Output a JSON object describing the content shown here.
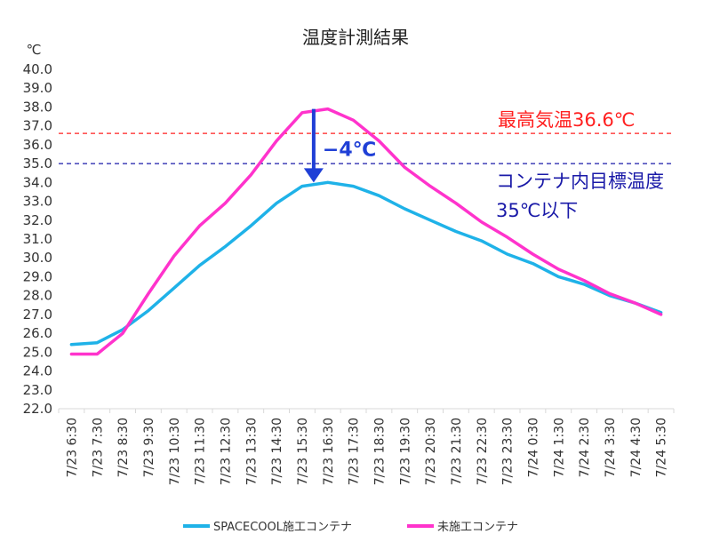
{
  "chart_data": {
    "type": "line",
    "title": "温度計測結果",
    "ylabel": "℃",
    "xlabel": "",
    "ylim": [
      22.0,
      40.0
    ],
    "y_ticks": [
      "22.0",
      "23.0",
      "24.0",
      "25.0",
      "26.0",
      "27.0",
      "28.0",
      "29.0",
      "30.0",
      "31.0",
      "32.0",
      "33.0",
      "34.0",
      "35.0",
      "36.0",
      "37.0",
      "38.0",
      "39.0",
      "40.0"
    ],
    "categories": [
      "7/23 6:30",
      "7/23 7:30",
      "7/23 8:30",
      "7/23 9:30",
      "7/23 10:30",
      "7/23 11:30",
      "7/23 12:30",
      "7/23 13:30",
      "7/23 14:30",
      "7/23 15:30",
      "7/23 16:30",
      "7/23 17:30",
      "7/23 18:30",
      "7/23 19:30",
      "7/23 20:30",
      "7/23 21:30",
      "7/23 22:30",
      "7/23 23:30",
      "7/24 0:30",
      "7/24 1:30",
      "7/24 2:30",
      "7/24 3:30",
      "7/24 4:30",
      "7/24 5:30"
    ],
    "series": [
      {
        "name": "SPACECOOL施工コンテナ",
        "color": "#1fb2e8",
        "values": [
          25.4,
          25.5,
          26.2,
          27.2,
          28.4,
          29.6,
          30.6,
          31.7,
          32.9,
          33.8,
          34.0,
          33.8,
          33.3,
          32.6,
          32.0,
          31.4,
          30.9,
          30.2,
          29.7,
          29.0,
          28.6,
          28.0,
          27.6,
          27.1
        ]
      },
      {
        "name": "未施工コンテナ",
        "color": "#ff33cc",
        "values": [
          24.9,
          24.9,
          26.0,
          28.1,
          30.1,
          31.7,
          32.9,
          34.4,
          36.2,
          37.7,
          37.9,
          37.3,
          36.2,
          34.8,
          33.8,
          32.9,
          31.9,
          31.1,
          30.2,
          29.4,
          28.8,
          28.1,
          27.6,
          27.0
        ]
      }
    ],
    "reference_lines": [
      {
        "value": 36.6,
        "color": "#ff2020",
        "label": "最高気温36.6℃"
      },
      {
        "value": 35.0,
        "color": "#1a1aa8",
        "label_line1": "コンテナ内目標温度",
        "label_line2": "35℃以下"
      }
    ],
    "annotation": {
      "label": "−4℃",
      "from": 37.9,
      "to": 34.0,
      "at": "7/23 16:30",
      "color": "#1f3fd6"
    },
    "grid": false,
    "legend_position": "bottom"
  }
}
